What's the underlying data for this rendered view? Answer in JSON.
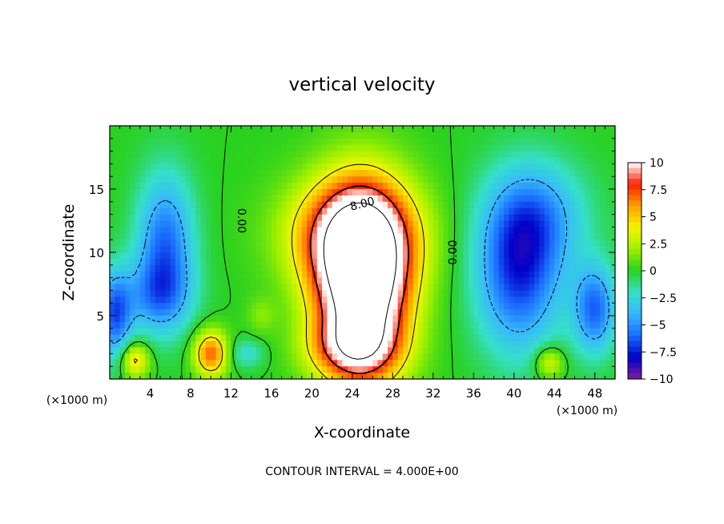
{
  "chart_data": {
    "type": "heatmap",
    "title": "vertical velocity",
    "xlabel": "X-coordinate",
    "ylabel": "Z-coordinate",
    "x_unit_label_left": "(×1000 m)",
    "x_unit_label_right": "(×1000 m)",
    "footer": "CONTOUR INTERVAL = 4.000E+00",
    "xlim": [
      0,
      50
    ],
    "ylim": [
      0,
      20
    ],
    "x_ticks": [
      4,
      8,
      12,
      16,
      20,
      24,
      28,
      32,
      36,
      40,
      44,
      48
    ],
    "y_ticks": [
      5,
      10,
      15
    ],
    "colorbar": {
      "min": -10,
      "max": 10,
      "tick_values": [
        10,
        7.5,
        5,
        2.5,
        0,
        -2.5,
        -5,
        -7.5,
        -10
      ],
      "tick_labels": [
        "10",
        "7.5",
        "5",
        "2.5",
        "0",
        "−2.5",
        "−5",
        "−7.5",
        "−10"
      ]
    },
    "contour_labels": [
      {
        "text": "0.00",
        "x": 13.0,
        "y": 12.5,
        "rotate": 90
      },
      {
        "text": "8.00",
        "x": 25.0,
        "y": 13.8,
        "rotate": -15
      },
      {
        "text": "0.00",
        "x": 34.0,
        "y": 10.0,
        "rotate": -90
      }
    ],
    "field_features": [
      {
        "label": "updraft core",
        "x": 25.0,
        "y": 7.5,
        "sx": 3.2,
        "sy": 5.0,
        "amplitude": 16
      },
      {
        "label": "updraft upper",
        "x": 24.0,
        "y": 11.5,
        "sx": 4.5,
        "sy": 3.0,
        "amplitude": 7
      },
      {
        "label": "updraft low",
        "x": 24.0,
        "y": 2.5,
        "sx": 3.0,
        "sy": 1.6,
        "amplitude": 5
      },
      {
        "label": "downdraft left",
        "x": 5.5,
        "y": 10.5,
        "sx": 2.0,
        "sy": 4.0,
        "amplitude": -6
      },
      {
        "label": "downdraft left low",
        "x": 4.5,
        "y": 6.5,
        "sx": 2.5,
        "sy": 2.0,
        "amplitude": -3.5
      },
      {
        "label": "downdraft edge left",
        "x": 0.5,
        "y": 5.0,
        "sx": 1.2,
        "sy": 2.5,
        "amplitude": -6
      },
      {
        "label": "downdraft right",
        "x": 40.5,
        "y": 8.5,
        "sx": 3.0,
        "sy": 4.5,
        "amplitude": -7
      },
      {
        "label": "downdraft right upper",
        "x": 42.5,
        "y": 13.0,
        "sx": 3.5,
        "sy": 3.0,
        "amplitude": -3.5
      },
      {
        "label": "downdraft far right",
        "x": 48.0,
        "y": 5.5,
        "sx": 1.5,
        "sy": 2.5,
        "amplitude": -6
      },
      {
        "label": "weak downdraft",
        "x": 13.5,
        "y": 2.0,
        "sx": 1.2,
        "sy": 0.8,
        "amplitude": -2.5
      },
      {
        "label": "thermal 1",
        "x": 2.5,
        "y": 1.5,
        "sx": 1.0,
        "sy": 1.0,
        "amplitude": 5
      },
      {
        "label": "thermal 2",
        "x": 10.0,
        "y": 2.0,
        "sx": 1.2,
        "sy": 1.3,
        "amplitude": 7
      },
      {
        "label": "thermal 3",
        "x": 43.5,
        "y": 1.3,
        "sx": 1.0,
        "sy": 0.9,
        "amplitude": 4
      },
      {
        "label": "weak lift",
        "x": 15.0,
        "y": 5.0,
        "sx": 1.0,
        "sy": 1.0,
        "amplitude": 1.5
      }
    ]
  },
  "colors": {
    "scale": [
      "#7a1fa2",
      "#0000c8",
      "#1a6bff",
      "#37b7ff",
      "#36e0c8",
      "#29d11f",
      "#9cf000",
      "#f5f500",
      "#ffa000",
      "#ff1e00",
      "#ffffff"
    ]
  }
}
